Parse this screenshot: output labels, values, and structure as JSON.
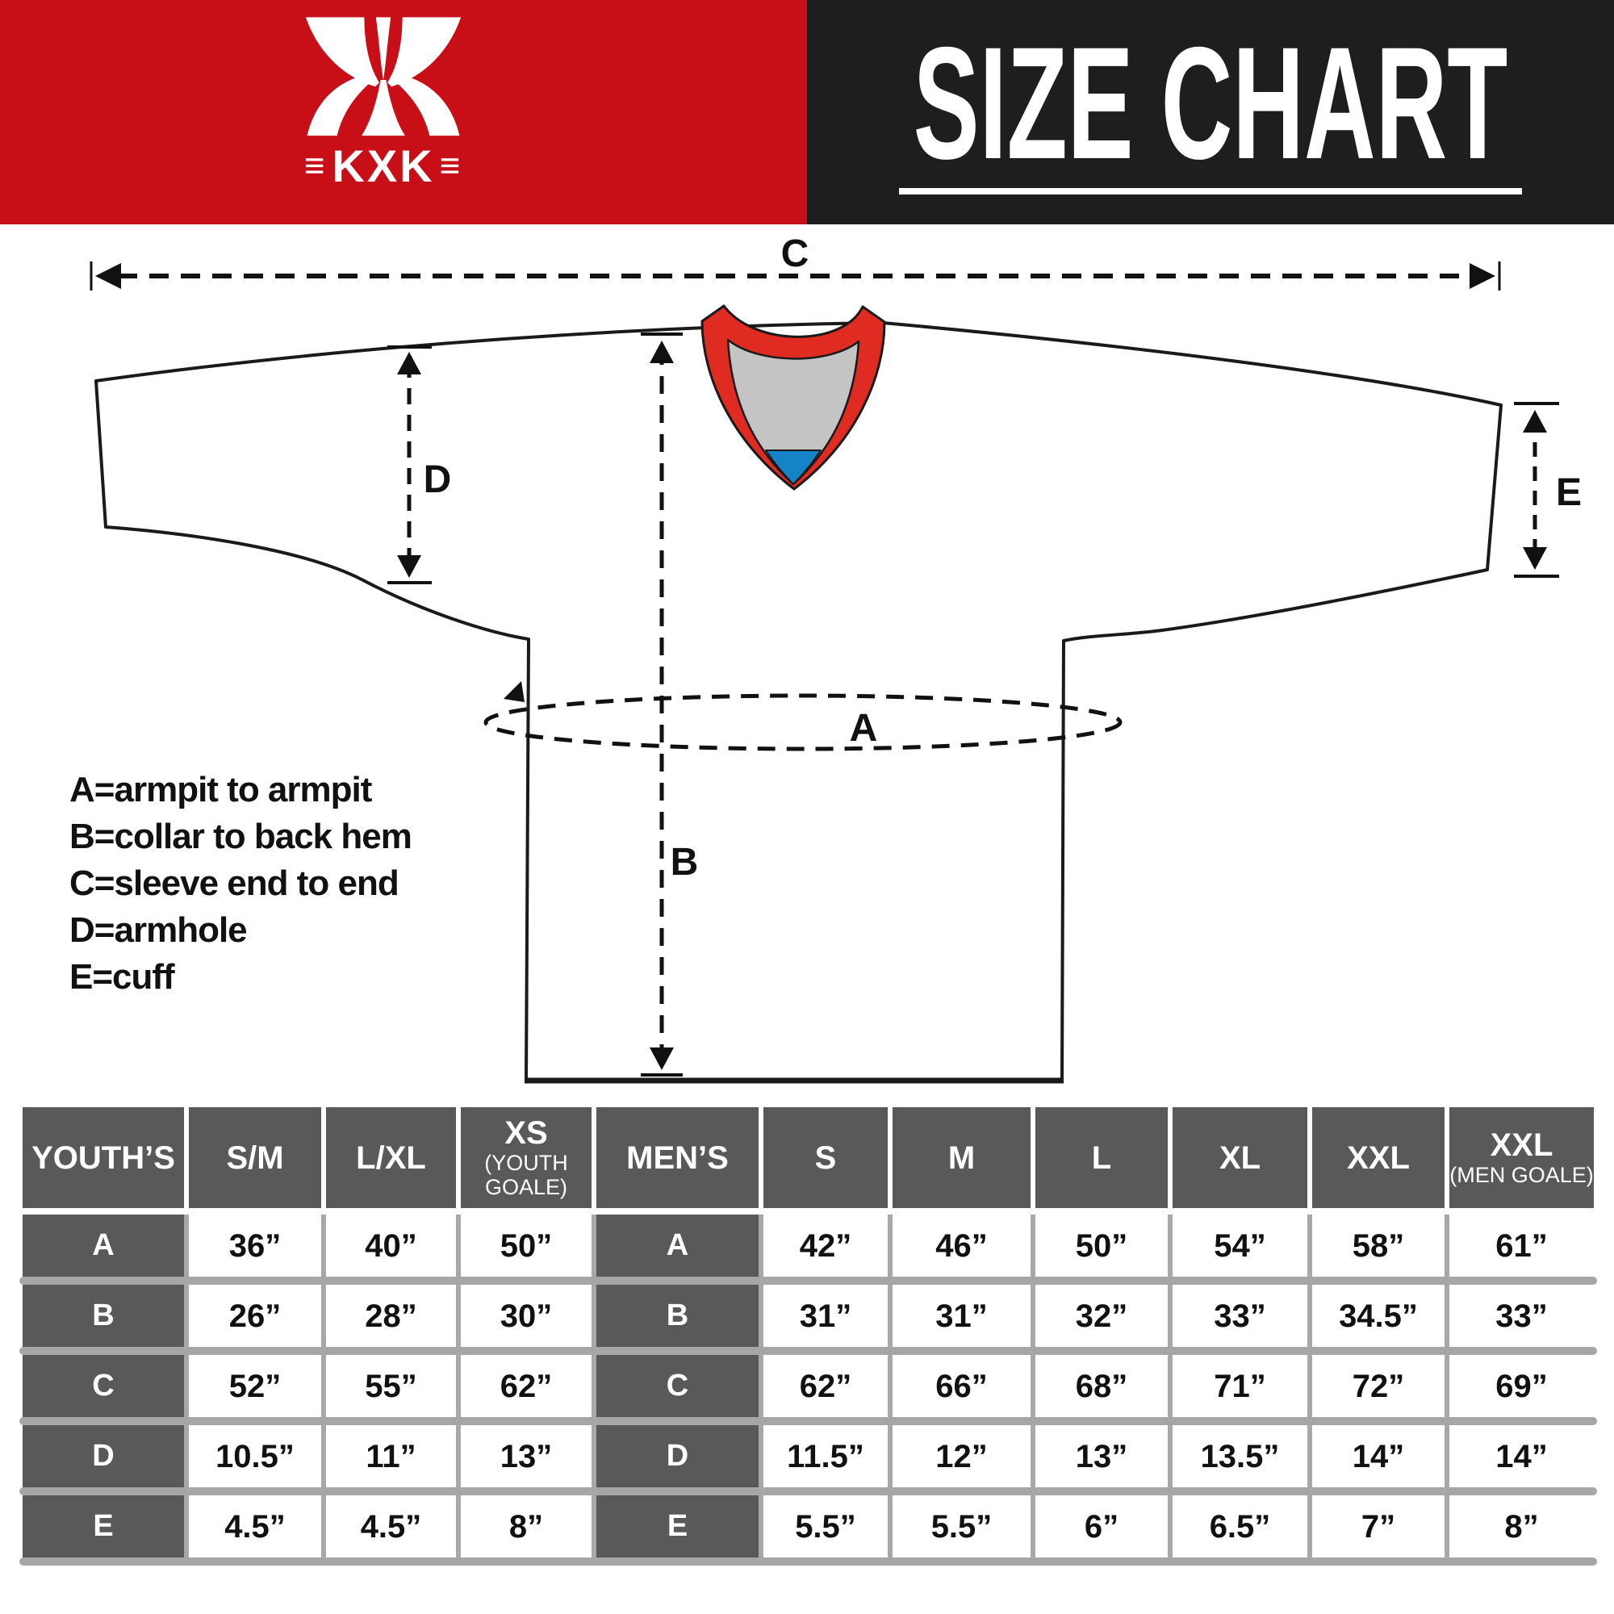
{
  "header": {
    "title": "SIZE CHART",
    "logo": {
      "text": "KXK",
      "flank": "≡"
    }
  },
  "diagram": {
    "labels": {
      "A": "A",
      "B": "B",
      "C": "C",
      "D": "D",
      "E": "E"
    },
    "legend": [
      "A=armpit to armpit",
      "B=collar to back hem",
      "C=sleeve end to end",
      "D=armhole",
      "E=cuff"
    ]
  },
  "colors": {
    "header_red": "#c80e17",
    "header_black": "#1e1e1e",
    "collar_red": "#df2b22",
    "collar_gray": "#c4c4c4",
    "collar_blue": "#1583c5",
    "table_gray": "#595959",
    "separator_gray": "#a6a6a6"
  },
  "chart_data": [
    {
      "type": "table",
      "title": "YOUTH’S",
      "columns": [
        "S/M",
        "L/XL",
        "XS (YOUTH GOALE)"
      ],
      "row_labels": [
        "A",
        "B",
        "C",
        "D",
        "E"
      ],
      "rows": [
        [
          "36”",
          "40”",
          "50”"
        ],
        [
          "26”",
          "28”",
          "30”"
        ],
        [
          "52”",
          "55”",
          "62”"
        ],
        [
          "10.5”",
          "11”",
          "13”"
        ],
        [
          "4.5”",
          "4.5”",
          "8”"
        ]
      ]
    },
    {
      "type": "table",
      "title": "MEN’S",
      "columns": [
        "S",
        "M",
        "L",
        "XL",
        "XXL",
        "XXL (MEN GOALE)"
      ],
      "row_labels": [
        "A",
        "B",
        "C",
        "D",
        "E"
      ],
      "rows": [
        [
          "42”",
          "46”",
          "50”",
          "54”",
          "58”",
          "61”"
        ],
        [
          "31”",
          "31”",
          "32”",
          "33”",
          "34.5”",
          "33”"
        ],
        [
          "62”",
          "66”",
          "68”",
          "71”",
          "72”",
          "69”"
        ],
        [
          "11.5”",
          "12”",
          "13”",
          "13.5”",
          "14”",
          "14”"
        ],
        [
          "5.5”",
          "5.5”",
          "6”",
          "6.5”",
          "7”",
          "8”"
        ]
      ]
    }
  ]
}
